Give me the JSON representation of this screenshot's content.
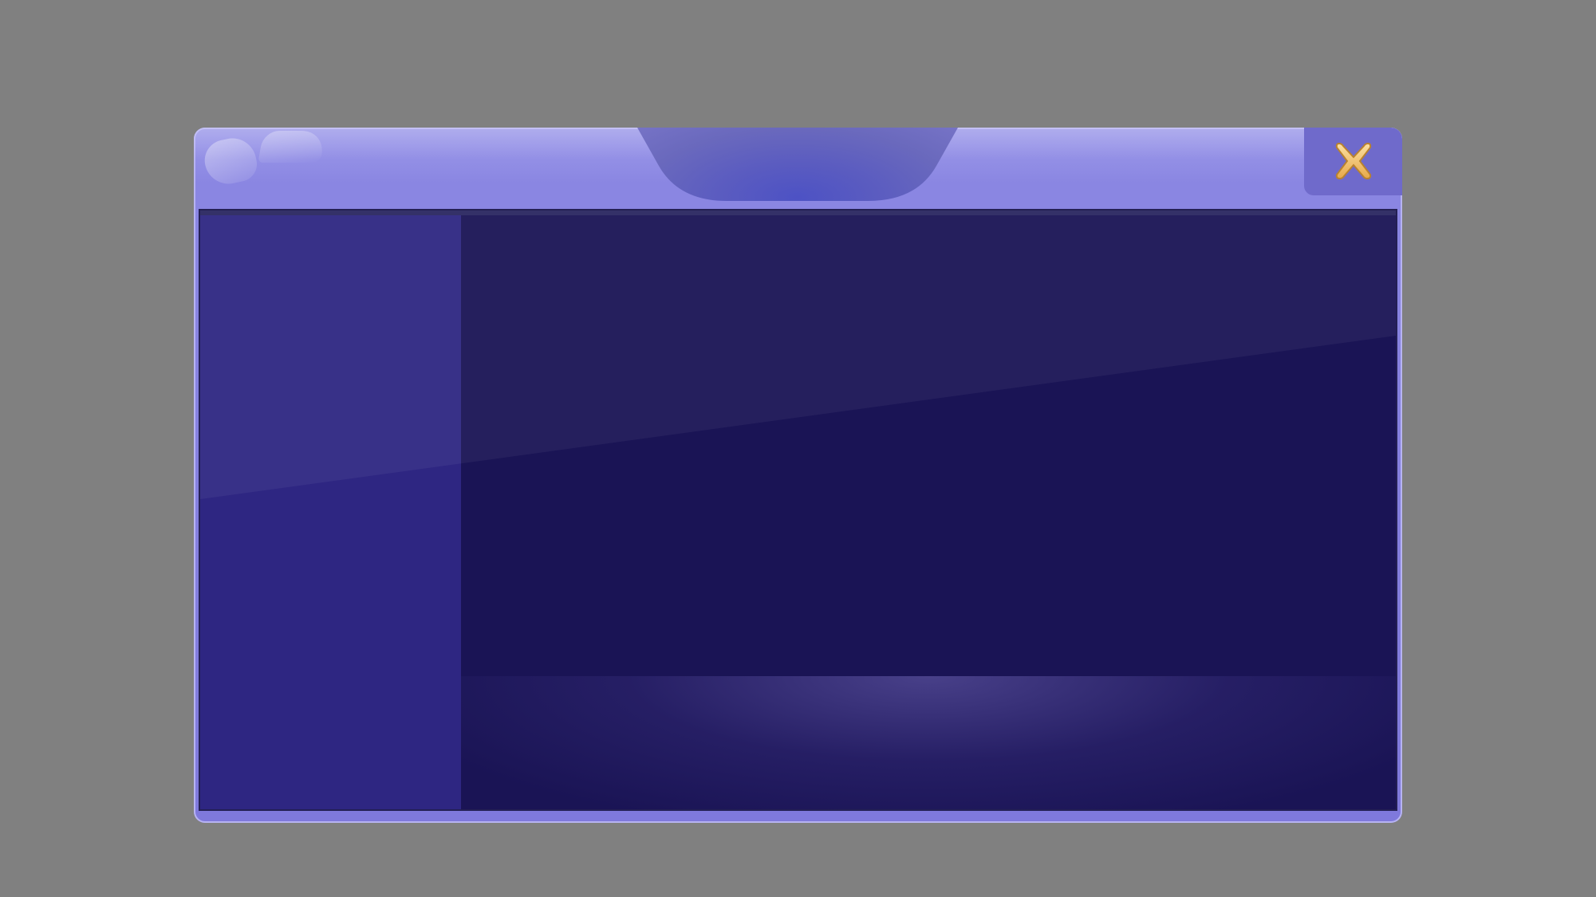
{
  "window": {
    "title": "",
    "close_icon": "close-x-icon"
  },
  "colors": {
    "backdrop": "#808080",
    "frame": "#7f79dc",
    "frame_highlight": "#9e9bea",
    "title_notch": "#5b5cc0",
    "close_button_bg": "#6f6acb",
    "close_icon": "#f5c872",
    "sidebar": "#2e2682",
    "main_panel": "#1a1455",
    "bottom_bar_glow": "#6e64b4"
  },
  "sidebar": {
    "items": []
  },
  "main": {
    "items": []
  }
}
